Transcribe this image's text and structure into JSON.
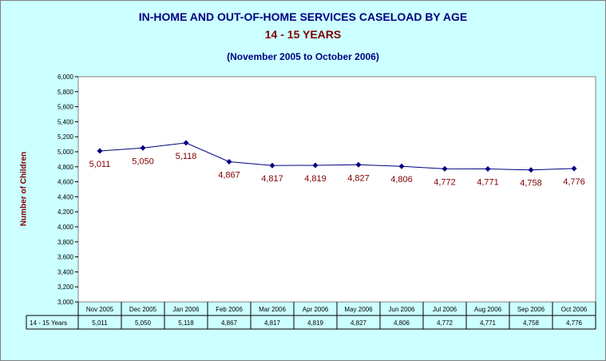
{
  "chart_data": {
    "type": "line",
    "title": "IN-HOME AND OUT-OF-HOME SERVICES CASELOAD BY AGE",
    "subtitle": "14 - 15 YEARS",
    "period": "(November 2005 to October 2006)",
    "ylabel": "Number of Children",
    "ylim": [
      3000,
      6000
    ],
    "ytick_step": 200,
    "ytick_labels": [
      "3,000",
      "3,200",
      "3,400",
      "3,600",
      "3,800",
      "4,000",
      "4,200",
      "4,400",
      "4,600",
      "4,800",
      "5,000",
      "5,200",
      "5,400",
      "5,600",
      "5,800",
      "6,000"
    ],
    "categories": [
      "Nov 2005",
      "Dec 2005",
      "Jan 2006",
      "Feb 2006",
      "Mar 2006",
      "Apr 2006",
      "May 2006",
      "Jun 2006",
      "Jul 2006",
      "Aug 2006",
      "Sep 2006",
      "Oct 2006"
    ],
    "series": [
      {
        "name": "14 - 15 Years",
        "values": [
          5011,
          5050,
          5118,
          4867,
          4817,
          4819,
          4827,
          4806,
          4772,
          4771,
          4758,
          4776
        ],
        "labels": [
          "5,011",
          "5,050",
          "5,118",
          "4,867",
          "4,817",
          "4,819",
          "4,827",
          "4,806",
          "4,772",
          "4,771",
          "4,758",
          "4,776"
        ]
      }
    ],
    "grid": false,
    "data_table": true,
    "colors": {
      "background": "#ccffff",
      "plot_bg": "#ffffff",
      "line": "#000080",
      "data_label": "#800000",
      "title": "#000080",
      "subtitle": "#800000"
    }
  }
}
